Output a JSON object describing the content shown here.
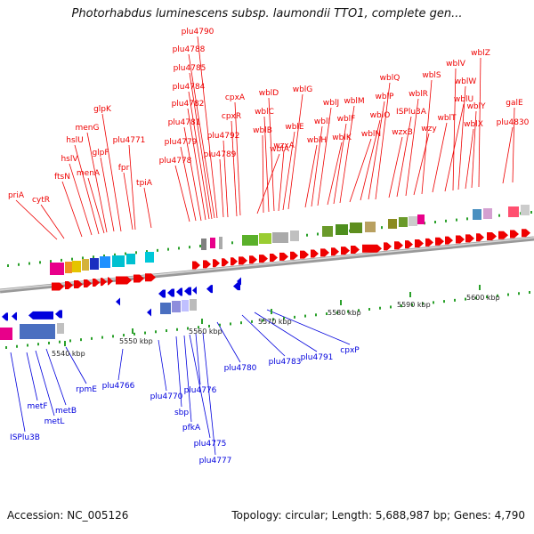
{
  "title": "Photorhabdus luminescens subsp. laumondii TTO1, complete gen...",
  "footer": {
    "accession": "Accession: NC_005126",
    "summary": "Topology: circular; Length: 5,688,987 bp; Genes: 4,790"
  },
  "colors": {
    "forward_gene": "#ee0000",
    "reverse_gene": "#0000dd",
    "backbone": "#999999"
  },
  "scale_labels": [
    "5540 kbp",
    "5550 kbp",
    "5560 kbp",
    "5570 kbp",
    "5580 kbp",
    "5590 kbp",
    "5600 kbp"
  ],
  "forward_genes": [
    "priA",
    "cytR",
    "ftsN",
    "hslV",
    "hslU",
    "menA",
    "menG",
    "glpF",
    "glpK",
    "fpr",
    "plu4771",
    "tpiA",
    "plu4778",
    "plu4779",
    "plu4781",
    "plu4782",
    "plu4784",
    "plu4785",
    "plu4788",
    "plu4790",
    "plu4789",
    "plu4792",
    "cpxR",
    "cpxA",
    "wblA",
    "wblB",
    "wblC",
    "wblD",
    "wzxA",
    "wblE",
    "wblG",
    "wblH",
    "wblI",
    "wblJ",
    "wblK",
    "wblF",
    "wblM",
    "wblN",
    "wblO",
    "wblP",
    "wblQ",
    "wzxB",
    "ISPlu3A",
    "wblR",
    "wzy",
    "wblS",
    "wblT",
    "wblU",
    "wblV",
    "wblW",
    "wblX",
    "wblY",
    "wblZ",
    "plu4830",
    "galE"
  ],
  "reverse_genes": [
    "ISPlu3B",
    "metF",
    "metL",
    "metB",
    "rpmE",
    "plu4766",
    "plu4770",
    "sbp",
    "pfkA",
    "plu4775",
    "plu4776",
    "plu4777",
    "plu4780",
    "plu4783",
    "plu4791",
    "cpxP"
  ]
}
